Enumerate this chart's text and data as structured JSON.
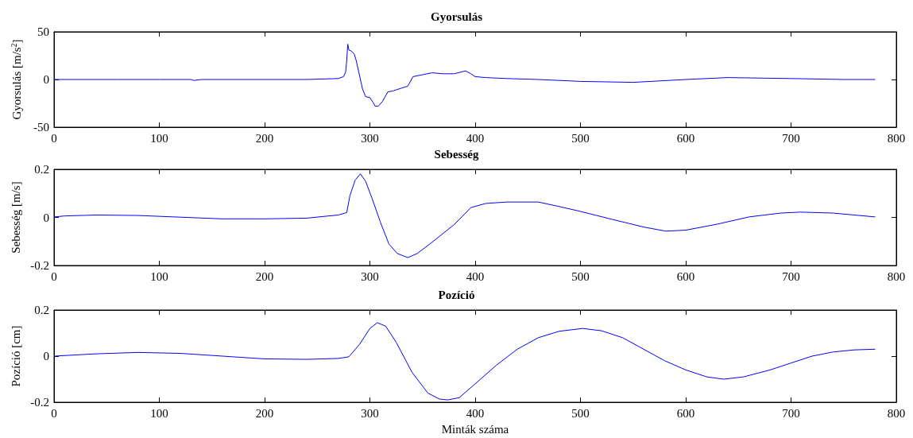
{
  "chart_data": [
    {
      "type": "line",
      "title": "Gyorsulás",
      "ylabel": "Gyorsulás [m/s$^{2}$]",
      "grid": false,
      "xlim": [
        0,
        800
      ],
      "xticks": [
        0,
        100,
        200,
        300,
        400,
        500,
        600,
        700,
        800
      ],
      "ylim": [
        -50,
        50
      ],
      "yticks": [
        -50,
        0,
        50
      ],
      "series": [
        {
          "color": "#0000ff",
          "x": [
            0,
            30,
            60,
            100,
            130,
            133,
            140,
            160,
            200,
            240,
            270,
            275,
            277,
            278,
            279,
            280,
            282,
            285,
            287,
            290,
            293,
            296,
            300,
            303,
            305,
            308,
            312,
            317,
            322,
            330,
            336,
            341,
            350,
            359,
            370,
            380,
            391,
            396,
            400,
            410,
            430,
            460,
            500,
            550,
            600,
            640,
            700,
            750,
            780
          ],
          "values": [
            0,
            0,
            0,
            0,
            0,
            -1,
            0,
            0,
            0,
            0,
            1,
            3,
            8,
            20,
            37,
            31,
            30,
            27,
            20,
            5,
            -10,
            -18,
            -19,
            -24,
            -28,
            -28,
            -23,
            -13,
            -12,
            -9,
            -7,
            3,
            5,
            7,
            6,
            6,
            9,
            6,
            3,
            2,
            1,
            0,
            -2,
            -3,
            0,
            2,
            1,
            0,
            0
          ]
        }
      ]
    },
    {
      "type": "line",
      "title": "Sebesség",
      "ylabel": "Sebesség [m/s]",
      "grid": false,
      "xlim": [
        0,
        800
      ],
      "xticks": [
        0,
        100,
        200,
        300,
        400,
        500,
        600,
        700,
        800
      ],
      "ylim": [
        -0.2,
        0.2
      ],
      "yticks": [
        -0.2,
        0,
        0.2
      ],
      "series": [
        {
          "color": "#0000ff",
          "x": [
            0,
            10,
            40,
            80,
            120,
            160,
            200,
            240,
            270,
            278,
            281,
            286,
            291,
            296,
            302,
            310,
            318,
            326,
            336,
            345,
            360,
            380,
            396,
            410,
            430,
            460,
            480,
            500,
            530,
            560,
            581,
            600,
            630,
            660,
            690,
            709,
            740,
            780
          ],
          "values": [
            0.002,
            0.006,
            0.01,
            0.008,
            0.001,
            -0.006,
            -0.006,
            -0.003,
            0.01,
            0.02,
            0.09,
            0.155,
            0.181,
            0.15,
            0.08,
            -0.02,
            -0.11,
            -0.15,
            -0.167,
            -0.15,
            -0.1,
            -0.03,
            0.041,
            0.058,
            0.064,
            0.064,
            0.045,
            0.025,
            -0.008,
            -0.04,
            -0.057,
            -0.053,
            -0.028,
            0.002,
            0.018,
            0.022,
            0.018,
            0.002
          ]
        }
      ]
    },
    {
      "type": "line",
      "title": "Pozíció",
      "xlabel": "Minták száma",
      "ylabel": "Pozíció [cm]",
      "grid": false,
      "xlim": [
        0,
        800
      ],
      "xticks": [
        0,
        100,
        200,
        300,
        400,
        500,
        600,
        700,
        800
      ],
      "ylim": [
        -0.2,
        0.2
      ],
      "yticks": [
        -0.2,
        0,
        0.2
      ],
      "series": [
        {
          "color": "#0000ff",
          "x": [
            0,
            40,
            80,
            120,
            160,
            200,
            240,
            270,
            280,
            290,
            300,
            307,
            315,
            325,
            340,
            355,
            366,
            374,
            385,
            400,
            420,
            440,
            460,
            480,
            502,
            520,
            540,
            560,
            580,
            600,
            620,
            636,
            655,
            680,
            700,
            720,
            740,
            760,
            780
          ],
          "values": [
            0,
            0.01,
            0.016,
            0.012,
            0.0,
            -0.012,
            -0.014,
            -0.01,
            -0.003,
            0.05,
            0.12,
            0.145,
            0.13,
            0.06,
            -0.07,
            -0.16,
            -0.186,
            -0.19,
            -0.18,
            -0.12,
            -0.04,
            0.03,
            0.08,
            0.108,
            0.12,
            0.11,
            0.08,
            0.03,
            -0.02,
            -0.06,
            -0.09,
            -0.1,
            -0.09,
            -0.06,
            -0.03,
            0.0,
            0.018,
            0.027,
            0.03
          ]
        }
      ]
    }
  ]
}
